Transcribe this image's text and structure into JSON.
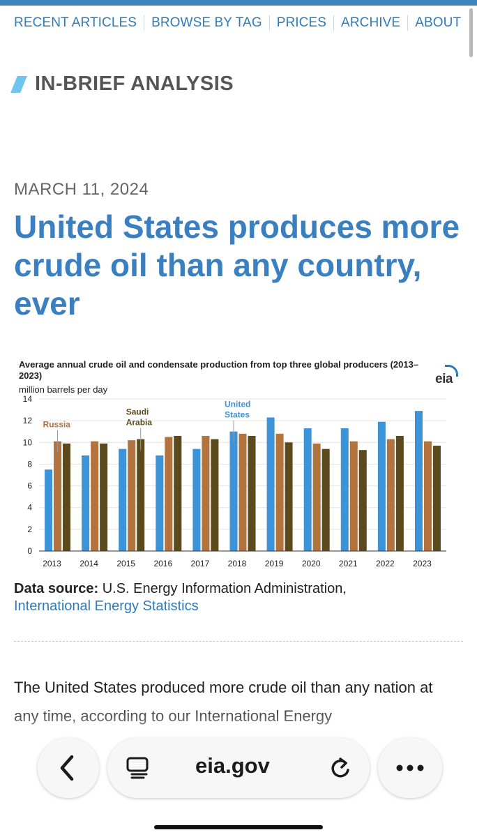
{
  "nav": {
    "items": [
      "RECENT ARTICLES",
      "BROWSE BY TAG",
      "PRICES",
      "ARCHIVE",
      "ABOUT"
    ]
  },
  "section_label": "IN-BRIEF ANALYSIS",
  "article": {
    "date": "MARCH 11, 2024",
    "title": "United States produces more crude oil than any country, ever",
    "body_preview": "The United States produced more crude oil than any nation at any time, according to our International Energy"
  },
  "source": {
    "prefix": "Data source:",
    "text": " U.S. Energy Information Administration,",
    "link": "International Energy Statistics"
  },
  "browser": {
    "url": "eia.gov",
    "back_icon": "chevron-left-icon",
    "reader_icon": "reader-icon",
    "reload_icon": "reload-icon",
    "more_icon": "more-icon"
  },
  "chart_data": {
    "type": "bar",
    "title": "Average annual crude oil and condensate production from top three global producers (2013–2023)",
    "logo": "eia",
    "ylabel": "million barrels per day",
    "ylim": [
      0,
      14
    ],
    "yticks": [
      0,
      2,
      4,
      6,
      8,
      10,
      12,
      14
    ],
    "categories": [
      "2013",
      "2014",
      "2015",
      "2016",
      "2017",
      "2018",
      "2019",
      "2020",
      "2021",
      "2022",
      "2023"
    ],
    "series": [
      {
        "name": "United States",
        "color": "#3d93d8",
        "values": [
          7.5,
          8.8,
          9.4,
          8.8,
          9.4,
          11.0,
          12.3,
          11.3,
          11.3,
          11.9,
          12.9
        ]
      },
      {
        "name": "Russia",
        "color": "#b3733f",
        "values": [
          10.1,
          10.1,
          10.2,
          10.5,
          10.6,
          10.8,
          10.8,
          9.9,
          10.1,
          10.3,
          10.1
        ]
      },
      {
        "name": "Saudi Arabia",
        "color": "#5a4a1c",
        "values": [
          9.9,
          9.9,
          10.3,
          10.6,
          10.3,
          10.6,
          10.0,
          9.4,
          9.3,
          10.6,
          9.7
        ]
      }
    ],
    "annotations": [
      {
        "label": "Russia",
        "series": 1,
        "category": "2013",
        "color": "#b3733f"
      },
      {
        "label": "Saudi Arabia",
        "lines": [
          "Saudi",
          "Arabia"
        ],
        "series": 2,
        "category": "2015",
        "color": "#5a4a1c"
      },
      {
        "label": "United States",
        "lines": [
          "United",
          "States"
        ],
        "series": 0,
        "category": "2018",
        "color": "#3d93d8"
      }
    ],
    "grid": true,
    "legend": "none"
  }
}
